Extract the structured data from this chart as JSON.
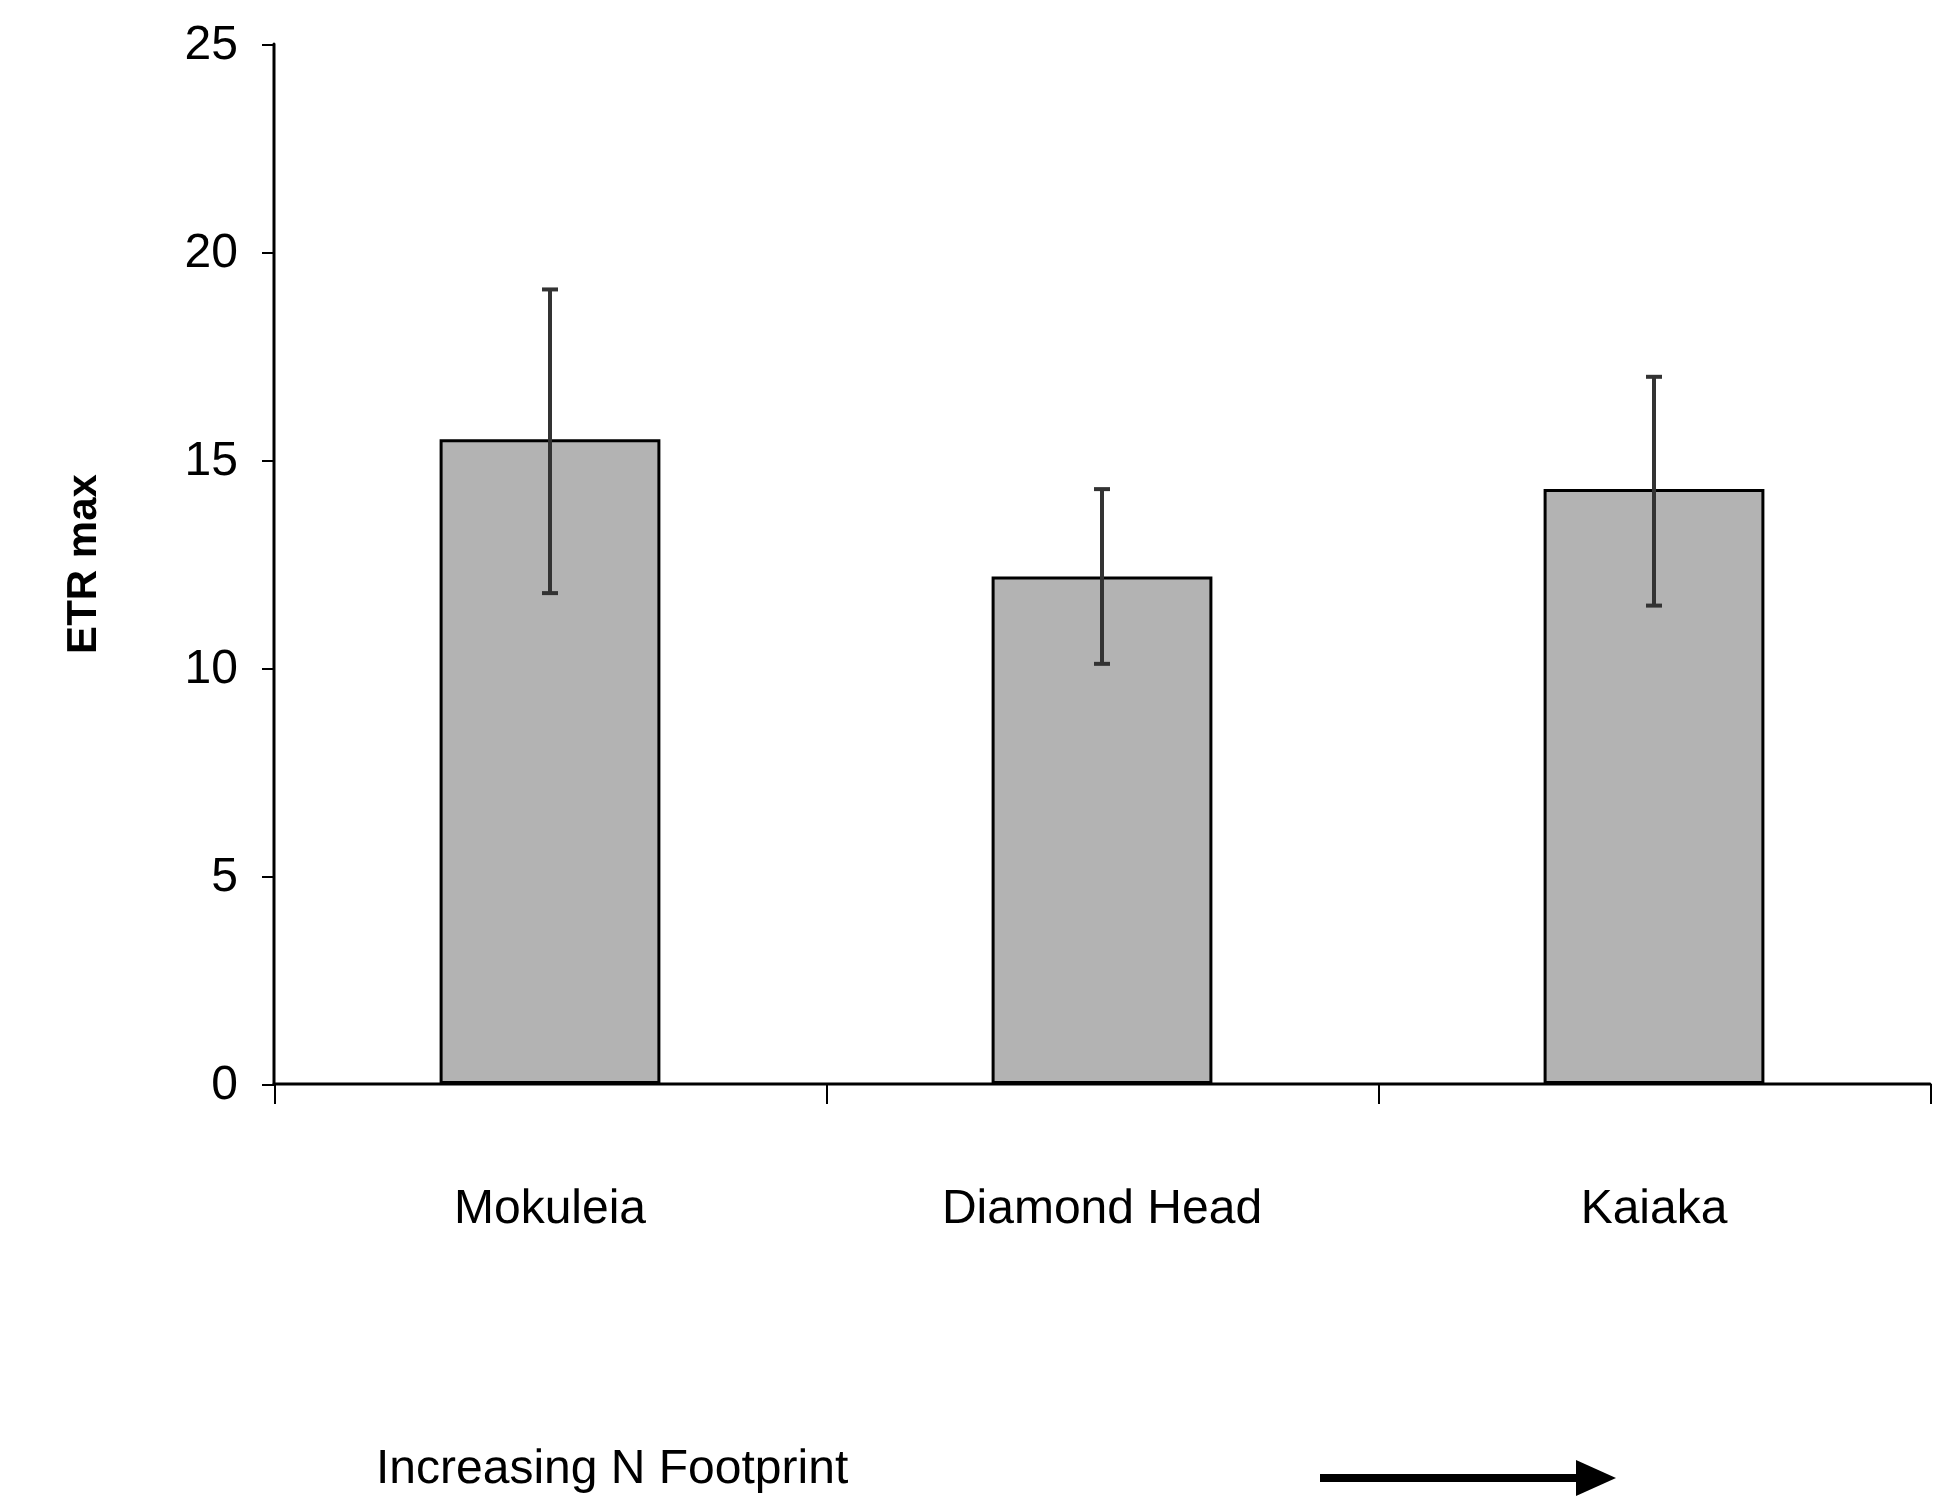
{
  "chart_data": {
    "type": "bar",
    "ylabel": "ETR max",
    "categories": [
      "Mokuleia",
      "Diamond Head",
      "Kaiaka"
    ],
    "values": [
      15.5,
      12.2,
      14.3
    ],
    "color": "#b3b3b3",
    "errors": [
      [
        11.8,
        19.1
      ],
      [
        10.1,
        14.3
      ],
      [
        11.5,
        17.0
      ]
    ],
    "ylim": [
      0,
      25
    ],
    "yticks": [
      0,
      5,
      10,
      15,
      20,
      25
    ],
    "grid": false,
    "annotations": [
      "Increasing N Footprint"
    ]
  }
}
